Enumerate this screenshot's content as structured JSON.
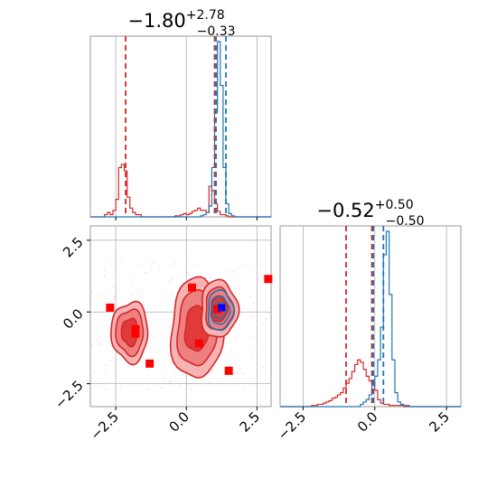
{
  "chart_data": [
    {
      "type": "histogram",
      "panel": "marginal parameter 1",
      "title": {
        "median": "−1.80",
        "plus": "+2.78",
        "minus": "−0.33"
      },
      "xlim": [
        -3.4,
        3.0
      ],
      "grid": true,
      "vlines_gray": [
        -2.5,
        0.0,
        2.5
      ],
      "series": [
        {
          "color": "#d62728",
          "bins_start": -3.4,
          "bin_width": 0.1,
          "counts": [
            0,
            0,
            0,
            0,
            0,
            2,
            4,
            2,
            6,
            16,
            45,
            48,
            42,
            18,
            8,
            4,
            2,
            2,
            0,
            0,
            0,
            0,
            0,
            0,
            0,
            0,
            0,
            0,
            0,
            0,
            1,
            1,
            2,
            3,
            2,
            3,
            5,
            6,
            8,
            6,
            6,
            4,
            28,
            24,
            12,
            5,
            2,
            2,
            1,
            0,
            0,
            0,
            0,
            0,
            0,
            0,
            0,
            0,
            0,
            0,
            0,
            0,
            0,
            0
          ],
          "quantile_lines": [
            -2.15,
            1.0
          ]
        },
        {
          "color": "#1f77b4",
          "bins_start": -3.4,
          "bin_width": 0.1,
          "counts": [
            0,
            0,
            0,
            0,
            0,
            0,
            0,
            0,
            0,
            0,
            0,
            0,
            0,
            0,
            0,
            0,
            0,
            0,
            0,
            0,
            0,
            0,
            0,
            0,
            0,
            0,
            0,
            0,
            0,
            0,
            0,
            0,
            0,
            0,
            0,
            0,
            0,
            0,
            0,
            1,
            2,
            4,
            10,
            45,
            95,
            160,
            120,
            45,
            12,
            3,
            1,
            0,
            0,
            0,
            0,
            0,
            0,
            0,
            0,
            0,
            0,
            0,
            0,
            0
          ],
          "quantile_lines": [
            1.05,
            1.4
          ]
        }
      ]
    },
    {
      "type": "contour",
      "panel": "joint parameter 1 vs parameter 2",
      "xlim": [
        -3.4,
        3.0
      ],
      "ylim": [
        -3.3,
        3.0
      ],
      "x_ticks": [
        "−2.5",
        "0.0",
        "2.5"
      ],
      "y_ticks": [
        "2.5",
        "0.0",
        "−2.5"
      ],
      "grid": true,
      "red_blobs": [
        {
          "cx": -2.0,
          "cy": -0.7,
          "rx": 0.65,
          "ry": 1.05
        },
        {
          "cx": 0.35,
          "cy": -0.6,
          "rx": 0.9,
          "ry": 1.75
        },
        {
          "cx": 1.15,
          "cy": 0.1,
          "rx": 0.65,
          "ry": 1.0
        }
      ],
      "blue_blob": {
        "cx": 1.2,
        "cy": 0.05,
        "rx": 0.45,
        "ry": 0.7
      },
      "red_markers": [
        [
          -2.7,
          0.15
        ],
        [
          -1.8,
          -0.6
        ],
        [
          -1.8,
          -0.75
        ],
        [
          -1.3,
          -1.8
        ],
        [
          0.2,
          0.85
        ],
        [
          0.45,
          -1.1
        ],
        [
          1.1,
          0.1
        ],
        [
          1.5,
          -2.05
        ],
        [
          2.9,
          1.15
        ]
      ],
      "blue_markers": [
        [
          1.25,
          0.15
        ]
      ]
    },
    {
      "type": "histogram",
      "panel": "marginal parameter 2",
      "title": {
        "median": "−0.52",
        "plus": "+0.50",
        "minus": "−0.50"
      },
      "xlim": [
        -3.3,
        3.0
      ],
      "x_ticks": [
        "−2.5",
        "0.0",
        "2.5"
      ],
      "grid": true,
      "series": [
        {
          "color": "#d62728",
          "bins_start": -3.3,
          "bin_width": 0.1,
          "counts": [
            0,
            0,
            0,
            0,
            0,
            0,
            0,
            0,
            0,
            0,
            0,
            1,
            1,
            2,
            2,
            3,
            4,
            5,
            7,
            8,
            10,
            12,
            16,
            20,
            24,
            30,
            36,
            40,
            38,
            32,
            26,
            22,
            20,
            14,
            6,
            3,
            2,
            2,
            1,
            1,
            1,
            1,
            1,
            0,
            1,
            0,
            0,
            0,
            0,
            0,
            0,
            0,
            0,
            0,
            0,
            0,
            0,
            0,
            0,
            0,
            0,
            0,
            0
          ],
          "quantile_lines": [
            -1.0,
            -0.1
          ]
        },
        {
          "color": "#1f77b4",
          "bins_start": -3.3,
          "bin_width": 0.1,
          "counts": [
            0,
            0,
            0,
            0,
            0,
            0,
            0,
            0,
            0,
            0,
            0,
            0,
            0,
            0,
            0,
            0,
            0,
            0,
            0,
            0,
            0,
            0,
            0,
            0,
            0,
            0,
            0,
            0,
            2,
            4,
            6,
            10,
            18,
            26,
            40,
            68,
            130,
            150,
            96,
            40,
            12,
            4,
            2,
            1,
            0,
            0,
            0,
            0,
            0,
            0,
            0,
            0,
            0,
            0,
            0,
            0,
            0,
            0,
            0,
            0,
            0,
            0,
            0
          ],
          "quantile_lines": [
            -0.05,
            0.3
          ]
        }
      ]
    }
  ]
}
